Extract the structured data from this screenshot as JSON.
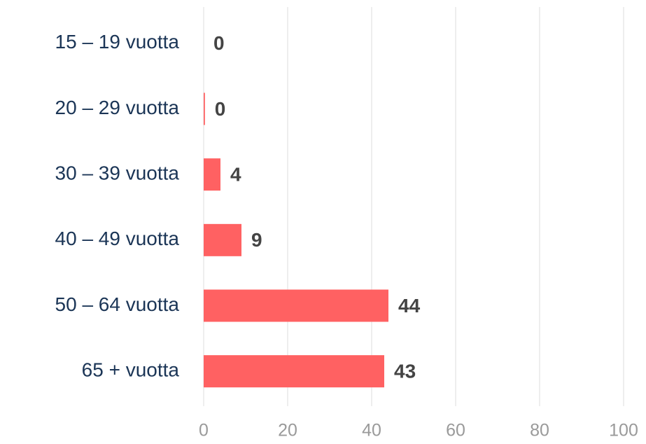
{
  "chart_data": {
    "type": "barh",
    "categories": [
      "15 – 19 vuotta",
      "20 – 29 vuotta",
      "30 – 39 vuotta",
      "40 – 49 vuotta",
      "50 – 64 vuotta",
      "65 + vuotta"
    ],
    "values": [
      0,
      0.3,
      4,
      9,
      44,
      43
    ],
    "value_labels": [
      "0",
      "0",
      "4",
      "9",
      "44",
      "43"
    ],
    "color": "#ff6162",
    "xlim": [
      0,
      100
    ],
    "xticks": [
      0,
      20,
      40,
      60,
      80,
      100
    ],
    "grid": true
  }
}
